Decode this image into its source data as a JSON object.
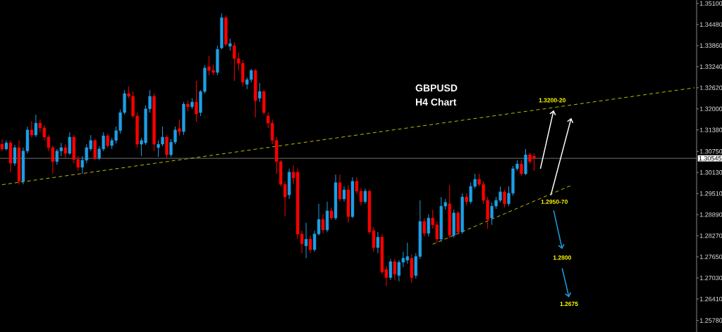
{
  "chart_data": {
    "type": "candlestick",
    "title": "GBPUSD",
    "subtitle": "H4 Chart",
    "categories": [
      null,
      null,
      null,
      null,
      null,
      null,
      null,
      null,
      null,
      null,
      null,
      null,
      null,
      null,
      null,
      null,
      null,
      null,
      null,
      null,
      null,
      null,
      null,
      null,
      null,
      null,
      null,
      null,
      null,
      null,
      null,
      null,
      null,
      null,
      null,
      null,
      null,
      null,
      null,
      null,
      null,
      null,
      null,
      null,
      null,
      null,
      null,
      null,
      null,
      null,
      null,
      null,
      null,
      null,
      null,
      null,
      null,
      null,
      null,
      null,
      null,
      null,
      null,
      null,
      null,
      null,
      null,
      null,
      null,
      null,
      null,
      null,
      null,
      null,
      null,
      null,
      null,
      null,
      null,
      null,
      null,
      null,
      null,
      null,
      null,
      null,
      null,
      null,
      null,
      null,
      null,
      null,
      null,
      null,
      null,
      null,
      null,
      null,
      null,
      null,
      null,
      null,
      null,
      null,
      null,
      null,
      null,
      null,
      null,
      null,
      null,
      null,
      null,
      null,
      null,
      null,
      null,
      null,
      null,
      null,
      null,
      null,
      null,
      null,
      null,
      null,
      null,
      null,
      null,
      null,
      null,
      null,
      null,
      null,
      null,
      null,
      null,
      null,
      null,
      null,
      null,
      null,
      null,
      null,
      null,
      null,
      null,
      null,
      null,
      null,
      null,
      null,
      null,
      null,
      null,
      null,
      null,
      null,
      null,
      null,
      null,
      null,
      null,
      null,
      null
    ],
    "ohlc": [
      [
        1.3096,
        1.3111,
        1.3076,
        1.3082
      ],
      [
        1.3082,
        1.3107,
        1.3078,
        1.31
      ],
      [
        1.31,
        1.3107,
        1.3014,
        1.304
      ],
      [
        1.304,
        1.3094,
        1.3032,
        1.3086
      ],
      [
        1.3086,
        1.3107,
        1.2978,
        1.2987
      ],
      [
        1.2987,
        1.3086,
        1.2978,
        1.3076
      ],
      [
        1.3076,
        1.3148,
        1.3069,
        1.3138
      ],
      [
        1.3138,
        1.3164,
        1.3115,
        1.3123
      ],
      [
        1.3123,
        1.3183,
        1.3117,
        1.3158
      ],
      [
        1.3158,
        1.3169,
        1.3131,
        1.3144
      ],
      [
        1.3144,
        1.3152,
        1.3107,
        1.3117
      ],
      [
        1.3117,
        1.3123,
        1.3076,
        1.3086
      ],
      [
        1.3086,
        1.3092,
        1.3009,
        1.3045
      ],
      [
        1.3045,
        1.3082,
        1.3036,
        1.3076
      ],
      [
        1.3076,
        1.31,
        1.3061,
        1.3086
      ],
      [
        1.3086,
        1.3096,
        1.3055,
        1.3069
      ],
      [
        1.3069,
        1.3131,
        1.3065,
        1.3117
      ],
      [
        1.3117,
        1.3123,
        1.304,
        1.3051
      ],
      [
        1.3051,
        1.3061,
        1.3018,
        1.3028
      ],
      [
        1.3028,
        1.3061,
        1.3009,
        1.3049
      ],
      [
        1.3049,
        1.3096,
        1.304,
        1.3086
      ],
      [
        1.3082,
        1.3123,
        1.3076,
        1.3107
      ],
      [
        1.3107,
        1.3111,
        1.3049,
        1.3055
      ],
      [
        1.3055,
        1.309,
        1.3049,
        1.3082
      ],
      [
        1.3082,
        1.3131,
        1.3076,
        1.3121
      ],
      [
        1.3121,
        1.3127,
        1.3086,
        1.3092
      ],
      [
        1.3092,
        1.3115,
        1.3082,
        1.3107
      ],
      [
        1.3107,
        1.3148,
        1.3098,
        1.3136
      ],
      [
        1.3136,
        1.3198,
        1.3127,
        1.3189
      ],
      [
        1.3189,
        1.3255,
        1.3183,
        1.3245
      ],
      [
        1.3245,
        1.3266,
        1.3231,
        1.3237
      ],
      [
        1.3237,
        1.3251,
        1.3173,
        1.3179
      ],
      [
        1.3179,
        1.3189,
        1.3086,
        1.3096
      ],
      [
        1.3096,
        1.3115,
        1.3061,
        1.3107
      ],
      [
        1.31,
        1.321,
        1.3094,
        1.32
      ],
      [
        1.32,
        1.3255,
        1.3189,
        1.3237
      ],
      [
        1.3237,
        1.3245,
        1.3076,
        1.3096
      ],
      [
        1.3086,
        1.3107,
        1.3059,
        1.3096
      ],
      [
        1.3096,
        1.3148,
        1.309,
        1.3117
      ],
      [
        1.3117,
        1.3123,
        1.3055,
        1.3065
      ],
      [
        1.3065,
        1.3111,
        1.3059,
        1.3102
      ],
      [
        1.3102,
        1.3148,
        1.3096,
        1.3138
      ],
      [
        1.3142,
        1.3169,
        1.3121,
        1.3133
      ],
      [
        1.3133,
        1.322,
        1.3123,
        1.3214
      ],
      [
        1.3214,
        1.3224,
        1.3193,
        1.3206
      ],
      [
        1.3206,
        1.3231,
        1.32,
        1.322
      ],
      [
        1.322,
        1.3282,
        1.3162,
        1.3185
      ],
      [
        1.3189,
        1.3255,
        1.3179,
        1.3251
      ],
      [
        1.3251,
        1.3328,
        1.3245,
        1.332
      ],
      [
        1.3324,
        1.3355,
        1.3299,
        1.3313
      ],
      [
        1.3313,
        1.333,
        1.3299,
        1.3307
      ],
      [
        1.3307,
        1.3386,
        1.3299,
        1.3375
      ],
      [
        1.3379,
        1.3481,
        1.3375,
        1.3468
      ],
      [
        1.3468,
        1.3475,
        1.3384,
        1.339
      ],
      [
        1.3384,
        1.3406,
        1.3371,
        1.3392
      ],
      [
        1.3386,
        1.3396,
        1.3282,
        1.3348
      ],
      [
        1.3348,
        1.3365,
        1.3313,
        1.3334
      ],
      [
        1.3334,
        1.3344,
        1.3266,
        1.3278
      ],
      [
        1.3272,
        1.3293,
        1.3258,
        1.3286
      ],
      [
        1.3286,
        1.3317,
        1.3278,
        1.3313
      ],
      [
        1.3313,
        1.3317,
        1.3175,
        1.3224
      ],
      [
        1.3231,
        1.3276,
        1.322,
        1.3251
      ],
      [
        1.3251,
        1.3255,
        1.3183,
        1.3189
      ],
      [
        1.3179,
        1.3189,
        1.3144,
        1.3158
      ],
      [
        1.3158,
        1.3169,
        1.3096,
        1.3107
      ],
      [
        1.3107,
        1.3117,
        1.3009,
        1.3045
      ],
      [
        1.3045,
        1.3049,
        1.2972,
        1.2978
      ],
      [
        1.2978,
        1.2987,
        1.2885,
        1.2941
      ],
      [
        1.2947,
        1.3024,
        1.2935,
        1.3014
      ],
      [
        1.3014,
        1.3034,
        1.2978,
        1.2997
      ],
      [
        1.3014,
        1.3024,
        1.2817,
        1.2832
      ],
      [
        1.2832,
        1.2842,
        1.2776,
        1.2803
      ],
      [
        1.2797,
        1.2865,
        1.2761,
        1.2817
      ],
      [
        1.2817,
        1.2828,
        1.2776,
        1.2786
      ],
      [
        1.2786,
        1.2842,
        1.278,
        1.2832
      ],
      [
        1.2832,
        1.2921,
        1.2828,
        1.2875
      ],
      [
        1.2875,
        1.289,
        1.2834,
        1.2844
      ],
      [
        1.2844,
        1.2927,
        1.2838,
        1.29
      ],
      [
        1.29,
        1.291,
        1.2873,
        1.2879
      ],
      [
        1.2879,
        1.3007,
        1.2873,
        1.2983
      ],
      [
        1.2983,
        1.3007,
        1.2927,
        1.2935
      ],
      [
        1.2935,
        1.2972,
        1.2927,
        1.2962
      ],
      [
        1.2962,
        1.2976,
        1.2865,
        1.2883
      ],
      [
        1.2883,
        1.2999,
        1.2879,
        1.2987
      ],
      [
        1.2987,
        1.2999,
        1.295,
        1.2958
      ],
      [
        1.2958,
        1.2966,
        1.2916,
        1.2927
      ],
      [
        1.2927,
        1.2966,
        1.2921,
        1.2958
      ],
      [
        1.2958,
        1.2962,
        1.2832,
        1.2838
      ],
      [
        1.2842,
        1.2852,
        1.278,
        1.2792
      ],
      [
        1.2792,
        1.2838,
        1.2776,
        1.2823
      ],
      [
        1.2823,
        1.2832,
        1.2714,
        1.272
      ],
      [
        1.2728,
        1.2739,
        1.2679,
        1.2704
      ],
      [
        1.2704,
        1.2759,
        1.2697,
        1.2751
      ],
      [
        1.2751,
        1.2759,
        1.2697,
        1.2714
      ],
      [
        1.271,
        1.2755,
        1.2693,
        1.2749
      ],
      [
        1.2749,
        1.278,
        1.2735,
        1.2761
      ],
      [
        1.2755,
        1.2807,
        1.2745,
        1.2766
      ],
      [
        1.2761,
        1.2772,
        1.2689,
        1.2704
      ],
      [
        1.271,
        1.2776,
        1.2701,
        1.2766
      ],
      [
        1.2766,
        1.2931,
        1.2759,
        1.2869
      ],
      [
        1.2869,
        1.2879,
        1.2825,
        1.2834
      ],
      [
        1.2834,
        1.289,
        1.2825,
        1.2879
      ],
      [
        1.2879,
        1.2904,
        1.2848,
        1.2859
      ],
      [
        1.2859,
        1.2869,
        1.2807,
        1.2817
      ],
      [
        1.2817,
        1.2941,
        1.2809,
        1.2914
      ],
      [
        1.2914,
        1.2935,
        1.2904,
        1.2925
      ],
      [
        1.2921,
        1.2976,
        1.2821,
        1.2828
      ],
      [
        1.2828,
        1.2904,
        1.2821,
        1.2894
      ],
      [
        1.2894,
        1.29,
        1.2832,
        1.2838
      ],
      [
        1.2838,
        1.2952,
        1.2832,
        1.2941
      ],
      [
        1.2941,
        1.2952,
        1.2916,
        1.2927
      ],
      [
        1.2927,
        1.2983,
        1.2921,
        1.2972
      ],
      [
        1.2972,
        1.3009,
        1.2966,
        1.2993
      ],
      [
        1.2993,
        1.3009,
        1.2972,
        1.2978
      ],
      [
        1.2978,
        1.2987,
        1.2921,
        1.2931
      ],
      [
        1.2931,
        1.2941,
        1.2848,
        1.2875
      ],
      [
        1.2879,
        1.2925,
        1.2859,
        1.2914
      ],
      [
        1.2914,
        1.2941,
        1.2906,
        1.2931
      ],
      [
        1.2931,
        1.2972,
        1.2925,
        1.2956
      ],
      [
        1.2956,
        1.2962,
        1.291,
        1.2921
      ],
      [
        1.2921,
        1.2972,
        1.2914,
        1.2952
      ],
      [
        1.2952,
        1.3032,
        1.2945,
        1.3024
      ],
      [
        1.3024,
        1.3049,
        1.3018,
        1.3038
      ],
      [
        1.3038,
        1.3049,
        1.3003,
        1.3009
      ],
      [
        1.3009,
        1.3082,
        1.3005,
        1.3065
      ],
      [
        1.3065,
        1.3071,
        1.3038,
        1.3045
      ],
      [
        1.3061,
        1.3069,
        1.3018,
        1.3055
      ],
      null,
      null,
      null,
      null,
      null,
      null,
      null,
      null,
      null,
      null,
      null,
      null,
      null,
      null,
      null,
      null,
      null,
      null,
      null,
      null,
      null,
      null,
      null,
      null,
      null,
      null,
      null,
      null,
      null,
      null,
      null,
      null,
      null,
      null,
      null,
      null,
      null,
      null
    ],
    "colors": [
      "#ff0000",
      "#1e9fe6",
      "#ff0000",
      "#1e9fe6",
      "#ff0000",
      "#1e9fe6",
      "#1e9fe6",
      "#ff0000",
      "#1e9fe6",
      "#ff0000",
      "#ff0000",
      "#ff0000",
      "#ff0000",
      "#1e9fe6",
      "#1e9fe6",
      "#ff0000",
      "#1e9fe6",
      "#ff0000",
      "#ff0000",
      "#1e9fe6",
      "#1e9fe6",
      "#1e9fe6",
      "#ff0000",
      "#1e9fe6",
      "#1e9fe6",
      "#ff0000",
      "#1e9fe6",
      "#1e9fe6",
      "#1e9fe6",
      "#1e9fe6",
      "#ff0000",
      "#ff0000",
      "#ff0000",
      "#1e9fe6",
      "#1e9fe6",
      "#1e9fe6",
      "#ff0000",
      "#1e9fe6",
      "#1e9fe6",
      "#ff0000",
      "#1e9fe6",
      "#1e9fe6",
      "#ff0000",
      "#1e9fe6",
      "#ff0000",
      "#1e9fe6",
      "#ff0000",
      "#1e9fe6",
      "#1e9fe6",
      "#ff0000",
      "#ff0000",
      "#1e9fe6",
      "#1e9fe6",
      "#ff0000",
      "#1e9fe6",
      "#ff0000",
      "#ff0000",
      "#ff0000",
      "#1e9fe6",
      "#1e9fe6",
      "#ff0000",
      "#1e9fe6",
      "#ff0000",
      "#ff0000",
      "#ff0000",
      "#ff0000",
      "#ff0000",
      "#ff0000",
      "#1e9fe6",
      "#ff0000",
      "#ff0000",
      "#ff0000",
      "#1e9fe6",
      "#ff0000",
      "#1e9fe6",
      "#1e9fe6",
      "#ff0000",
      "#1e9fe6",
      "#ff0000",
      "#1e9fe6",
      "#ff0000",
      "#1e9fe6",
      "#ff0000",
      "#1e9fe6",
      "#ff0000",
      "#ff0000",
      "#1e9fe6",
      "#ff0000",
      "#ff0000",
      "#1e9fe6",
      "#ff0000",
      "#ff0000",
      "#1e9fe6",
      "#ff0000",
      "#1e9fe6",
      "#1e9fe6",
      "#1e9fe6",
      "#ff0000",
      "#1e9fe6",
      "#1e9fe6",
      "#ff0000",
      "#1e9fe6",
      "#ff0000",
      "#ff0000",
      "#1e9fe6",
      "#1e9fe6",
      "#ff0000",
      "#1e9fe6",
      "#ff0000",
      "#1e9fe6",
      "#ff0000",
      "#1e9fe6",
      "#1e9fe6",
      "#ff0000",
      "#ff0000",
      "#ff0000",
      "#1e9fe6",
      "#1e9fe6",
      "#1e9fe6",
      "#ff0000",
      "#1e9fe6",
      "#1e9fe6",
      "#1e9fe6",
      "#ff0000",
      "#1e9fe6",
      "#ff0000",
      "#ff0000",
      null,
      null,
      null,
      null,
      null,
      null,
      null,
      null,
      null,
      null,
      null,
      null,
      null,
      null,
      null,
      null,
      null,
      null,
      null,
      null,
      null,
      null,
      null,
      null,
      null,
      null,
      null,
      null,
      null,
      null,
      null,
      null,
      null,
      null,
      null,
      null,
      null,
      null
    ],
    "series": [
      {
        "type": "line",
        "color": "#bdbd00",
        "line_style": "dashed",
        "values": [
          1.2977,
          null,
          null,
          null,
          null,
          null,
          null,
          null,
          null,
          null,
          null,
          null,
          null,
          null,
          null,
          null,
          null,
          null,
          null,
          null,
          null,
          null,
          null,
          null,
          null,
          null,
          null,
          null,
          null,
          null,
          null,
          null,
          null,
          null,
          null,
          null,
          null,
          null,
          null,
          null,
          null,
          null,
          null,
          null,
          null,
          null,
          null,
          null,
          null,
          null,
          null,
          null,
          null,
          null,
          null,
          null,
          null,
          null,
          null,
          null,
          null,
          null,
          null,
          null,
          null,
          null,
          null,
          null,
          null,
          null,
          null,
          null,
          null,
          null,
          null,
          null,
          null,
          null,
          null,
          null,
          null,
          null,
          null,
          null,
          null,
          null,
          null,
          null,
          null,
          null,
          null,
          null,
          null,
          null,
          null,
          null,
          null,
          null,
          null,
          null,
          null,
          null,
          null,
          null,
          null,
          null,
          null,
          null,
          null,
          null,
          null,
          null,
          null,
          null,
          null,
          null,
          null,
          null,
          null,
          null,
          null,
          null,
          null,
          null,
          null,
          null,
          null,
          null,
          null,
          null,
          null,
          null,
          null,
          null,
          null,
          null,
          null,
          null,
          null,
          null,
          null,
          null,
          null,
          null,
          null,
          null,
          null,
          null,
          null,
          null,
          null,
          null,
          null,
          null,
          null,
          null,
          null,
          null,
          null,
          null,
          null,
          null,
          null,
          null,
          1.3262
        ]
      },
      {
        "type": "line",
        "color": "#bdbd00",
        "line_style": "dashed",
        "values": [
          null,
          null,
          null,
          null,
          null,
          null,
          null,
          null,
          null,
          null,
          null,
          null,
          null,
          null,
          null,
          null,
          null,
          null,
          null,
          null,
          null,
          null,
          null,
          null,
          null,
          null,
          null,
          null,
          null,
          null,
          null,
          null,
          null,
          null,
          null,
          null,
          null,
          null,
          null,
          null,
          null,
          null,
          null,
          null,
          null,
          null,
          null,
          null,
          null,
          null,
          null,
          null,
          null,
          null,
          null,
          null,
          null,
          null,
          null,
          null,
          null,
          null,
          null,
          null,
          null,
          null,
          null,
          null,
          null,
          null,
          null,
          null,
          null,
          null,
          null,
          null,
          null,
          null,
          null,
          null,
          null,
          null,
          null,
          null,
          null,
          null,
          null,
          null,
          null,
          null,
          null,
          null,
          null,
          null,
          null,
          null,
          null,
          null,
          null,
          null,
          null,
          null,
          1.2802,
          null,
          null,
          null,
          null,
          null,
          null,
          null,
          null,
          null,
          null,
          null,
          null,
          null,
          null,
          null,
          null,
          null,
          null,
          null,
          null,
          null,
          null,
          null,
          null,
          null,
          null,
          null,
          null,
          null,
          null,
          null,
          null,
          1.2976,
          null,
          null,
          null,
          null,
          null,
          null,
          null,
          null,
          null,
          null,
          null,
          null,
          null,
          null,
          null,
          null,
          null,
          null,
          null,
          null,
          null,
          null,
          null,
          null,
          null,
          null,
          null,
          null,
          null
        ]
      }
    ],
    "ylim": [
      1.2544,
      1.352
    ],
    "yticks": [
      {
        "value": 1.2578,
        "label": "1.25780"
      },
      {
        "value": 1.2641,
        "label": "1.26410"
      },
      {
        "value": 1.2703,
        "label": "1.27030"
      },
      {
        "value": 1.2765,
        "label": "1.27650"
      },
      {
        "value": 1.2827,
        "label": "1.28270"
      },
      {
        "value": 1.2889,
        "label": "1.28890"
      },
      {
        "value": 1.2951,
        "label": "1.29510"
      },
      {
        "value": 1.3013,
        "label": "1.30130"
      },
      {
        "value": 1.3075,
        "label": "1.30750"
      },
      {
        "value": 1.3138,
        "label": "1.31380"
      },
      {
        "value": 1.32,
        "label": "1.32000"
      },
      {
        "value": 1.3262,
        "label": "1.32620"
      },
      {
        "value": 1.3324,
        "label": "1.33240"
      },
      {
        "value": 1.3386,
        "label": "1.33860"
      },
      {
        "value": 1.3448,
        "label": "1.34480"
      },
      {
        "value": 1.351,
        "label": "1.35100"
      }
    ],
    "ref_lines": [
      {
        "axis": "y",
        "value": 1.30545,
        "label": "1.30545",
        "color": "#8c8c8c"
      }
    ],
    "annotations": [
      {
        "text": "1.3200-20",
        "y": 1.32
      },
      {
        "text": "1.2950-70",
        "y": 1.295
      },
      "1.2800",
      "1.2675"
    ],
    "tick_labels": "y"
  }
}
